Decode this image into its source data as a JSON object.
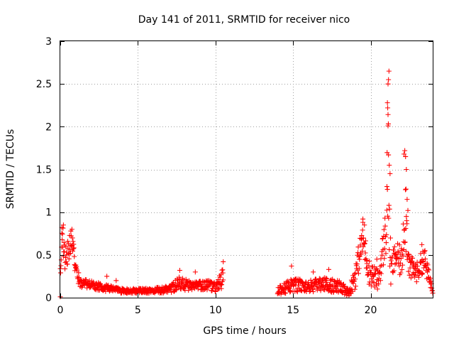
{
  "chart_data": {
    "type": "scatter",
    "title": "Day 141 of 2011, SRMTID for receiver nico",
    "xlabel": "GPS time / hours",
    "ylabel": "SRMTID / TECUs",
    "xlim": [
      0,
      24
    ],
    "ylim": [
      0,
      3
    ],
    "grid": true,
    "marker": "+",
    "color": "#ff0000",
    "x_ticks": [
      0,
      5,
      10,
      15,
      20
    ],
    "x_tick_labels": [
      "0",
      "5",
      "10",
      "15",
      "20"
    ],
    "y_ticks": [
      0,
      0.5,
      1,
      1.5,
      2,
      2.5,
      3
    ],
    "y_tick_labels": [
      "0",
      "0.5",
      "1",
      "1.5",
      "2",
      "2.5",
      "3"
    ],
    "series": [
      {
        "name": "SRMTID",
        "segments": [
          {
            "start": 0.0,
            "end": 10.5,
            "step": 0.02
          },
          {
            "start": 14.0,
            "end": 24.0,
            "step": 0.02
          }
        ],
        "envelope": [
          [
            0.0,
            0.35,
            0.12
          ],
          [
            0.15,
            0.75,
            0.18
          ],
          [
            0.3,
            0.45,
            0.15
          ],
          [
            0.5,
            0.55,
            0.15
          ],
          [
            0.75,
            0.7,
            0.12
          ],
          [
            1.0,
            0.3,
            0.1
          ],
          [
            1.3,
            0.17,
            0.05
          ],
          [
            2.0,
            0.15,
            0.05
          ],
          [
            3.0,
            0.11,
            0.04
          ],
          [
            4.0,
            0.08,
            0.03
          ],
          [
            5.0,
            0.08,
            0.03
          ],
          [
            6.0,
            0.08,
            0.03
          ],
          [
            7.0,
            0.1,
            0.05
          ],
          [
            7.7,
            0.17,
            0.08
          ],
          [
            8.5,
            0.13,
            0.05
          ],
          [
            9.5,
            0.15,
            0.06
          ],
          [
            10.0,
            0.12,
            0.06
          ],
          [
            10.5,
            0.2,
            0.15
          ],
          [
            14.0,
            0.08,
            0.05
          ],
          [
            15.0,
            0.15,
            0.08
          ],
          [
            16.0,
            0.13,
            0.07
          ],
          [
            17.0,
            0.16,
            0.08
          ],
          [
            18.0,
            0.12,
            0.08
          ],
          [
            18.6,
            0.06,
            0.04
          ],
          [
            19.0,
            0.25,
            0.15
          ],
          [
            19.5,
            0.7,
            0.2
          ],
          [
            19.9,
            0.3,
            0.15
          ],
          [
            20.5,
            0.2,
            0.12
          ],
          [
            21.0,
            0.8,
            0.3
          ],
          [
            21.1,
            1.6,
            0.9
          ],
          [
            21.3,
            0.3,
            0.2
          ],
          [
            21.6,
            0.5,
            0.15
          ],
          [
            22.0,
            0.4,
            0.2
          ],
          [
            22.2,
            1.1,
            0.5
          ],
          [
            22.5,
            0.35,
            0.15
          ],
          [
            23.0,
            0.3,
            0.12
          ],
          [
            23.4,
            0.45,
            0.15
          ],
          [
            24.0,
            0.1,
            0.05
          ]
        ],
        "peaks": [
          [
            0.2,
            0.85
          ],
          [
            0.1,
            0.82
          ],
          [
            0.75,
            0.8
          ],
          [
            3.0,
            0.25
          ],
          [
            3.6,
            0.2
          ],
          [
            7.7,
            0.32
          ],
          [
            8.7,
            0.3
          ],
          [
            10.5,
            0.42
          ],
          [
            14.9,
            0.37
          ],
          [
            16.3,
            0.3
          ],
          [
            17.3,
            0.33
          ],
          [
            19.5,
            0.92
          ],
          [
            19.6,
            0.85
          ],
          [
            20.4,
            0.45
          ],
          [
            21.18,
            2.65
          ],
          [
            21.15,
            2.55
          ],
          [
            21.12,
            2.5
          ],
          [
            21.08,
            2.28
          ],
          [
            21.1,
            2.22
          ],
          [
            21.12,
            2.01
          ],
          [
            21.15,
            1.67
          ],
          [
            21.2,
            1.55
          ],
          [
            21.25,
            1.45
          ],
          [
            21.05,
            1.3
          ],
          [
            22.2,
            1.72
          ],
          [
            22.15,
            1.68
          ],
          [
            22.25,
            1.65
          ],
          [
            22.3,
            1.5
          ],
          [
            22.28,
            1.27
          ],
          [
            22.35,
            1.15
          ],
          [
            22.4,
            1.02
          ],
          [
            23.3,
            0.62
          ],
          [
            23.5,
            0.55
          ]
        ]
      }
    ]
  }
}
